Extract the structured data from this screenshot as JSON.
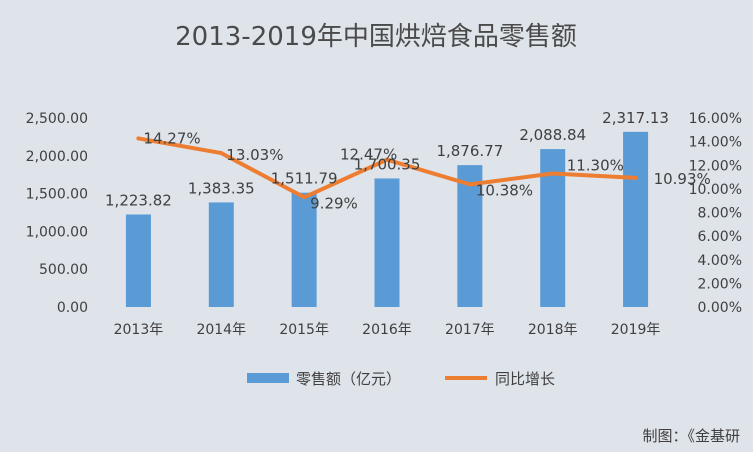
{
  "chart_data": {
    "type": "bar",
    "title": "2013-2019年中国烘焙食品零售额",
    "categories": [
      "2013年",
      "2014年",
      "2015年",
      "2016年",
      "2017年",
      "2018年",
      "2019年"
    ],
    "series": [
      {
        "name": "零售额（亿元）",
        "type": "bar",
        "axis": "left",
        "color": "#5b9bd5",
        "values": [
          1223.82,
          1383.35,
          1511.79,
          1700.35,
          1876.77,
          2088.84,
          2317.13
        ],
        "labels": [
          "1,223.82",
          "1,383.35",
          "1,511.79",
          "1,700.35",
          "1,876.77",
          "2,088.84",
          "2,317.13"
        ]
      },
      {
        "name": "同比增长",
        "type": "line",
        "axis": "right",
        "color": "#ed7d31",
        "values": [
          14.27,
          13.03,
          9.29,
          12.47,
          10.38,
          11.3,
          10.93
        ],
        "labels": [
          "14.27%",
          "13.03%",
          "9.29%",
          "12.47%",
          "10.38%",
          "11.30%",
          "10.93%"
        ]
      }
    ],
    "y_left": {
      "range": [
        0,
        2500
      ],
      "ticks": [
        0,
        500,
        1000,
        1500,
        2000,
        2500
      ],
      "tick_labels": [
        "0.00",
        "500.00",
        "1,000.00",
        "1,500.00",
        "2,000.00",
        "2,500.00"
      ]
    },
    "y_right": {
      "range": [
        0,
        16
      ],
      "ticks": [
        0,
        2,
        4,
        6,
        8,
        10,
        12,
        14,
        16
      ],
      "tick_labels": [
        "0.00%",
        "2.00%",
        "4.00%",
        "6.00%",
        "8.00%",
        "10.00%",
        "12.00%",
        "14.00%",
        "16.00%"
      ]
    },
    "grid": false,
    "legend": "bottom",
    "credit": "制图：《金基研"
  }
}
